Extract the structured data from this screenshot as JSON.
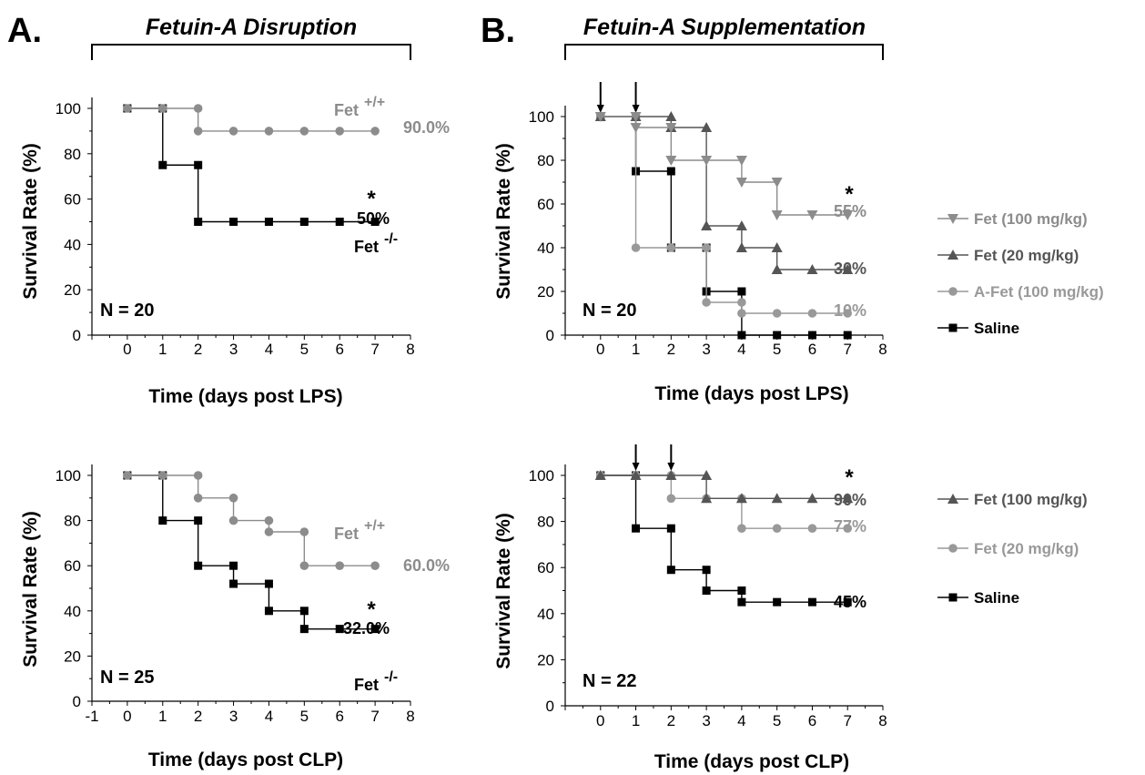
{
  "panels": [
    {
      "letter": "A.",
      "title": "Fetuin-A Disruption"
    },
    {
      "letter": "B.",
      "title": "Fetuin-A Supplementation"
    }
  ],
  "chart_data": [
    {
      "type": "line",
      "subtype": "kaplan-meier survival",
      "panel": "A",
      "xlabel": "Time (days post LPS)",
      "ylabel": "Survival Rate (%)",
      "xlim": [
        -1,
        8
      ],
      "ylim": [
        0,
        100
      ],
      "xticks": [
        "0",
        "1",
        "2",
        "3",
        "4",
        "5",
        "6",
        "7",
        "8"
      ],
      "yticks": [
        "0",
        "20",
        "40",
        "60",
        "80",
        "100"
      ],
      "n_label": "N = 20",
      "series": [
        {
          "name": "Fet +/+",
          "group": "Fet",
          "sup": "+/+",
          "color": "#8c8c8c",
          "marker": "circle",
          "x": [
            0,
            1,
            2,
            3,
            4,
            5,
            6,
            7
          ],
          "y": [
            100,
            100,
            90,
            90,
            90,
            90,
            90,
            90
          ],
          "end_label": "90.0%"
        },
        {
          "name": "Fet -/-",
          "group": "Fet",
          "sup": "-/-",
          "color": "#000000",
          "marker": "square",
          "x": [
            0,
            1,
            2,
            3,
            4,
            5,
            6,
            7
          ],
          "y": [
            100,
            75,
            50,
            50,
            50,
            50,
            50,
            50
          ],
          "end_label": "50%",
          "sig": "*"
        }
      ]
    },
    {
      "type": "line",
      "subtype": "kaplan-meier survival",
      "panel": "B",
      "xlabel": "Time (days post LPS)",
      "ylabel": "Survival Rate (%)",
      "xlim": [
        -1,
        8
      ],
      "ylim": [
        0,
        100
      ],
      "xticks": [
        "0",
        "1",
        "2",
        "3",
        "4",
        "5",
        "6",
        "7",
        "8"
      ],
      "yticks": [
        "0",
        "20",
        "40",
        "60",
        "80",
        "100"
      ],
      "n_label": "N = 20",
      "arrows_at": [
        0,
        1
      ],
      "series": [
        {
          "name": "Fet (100 mg/kg)",
          "color": "#8c8c8c",
          "marker": "triangle-down",
          "x": [
            0,
            1,
            2,
            3,
            4,
            5,
            6,
            7
          ],
          "y": [
            100,
            95,
            80,
            80,
            70,
            55,
            55,
            55
          ],
          "end_label": "55%",
          "sig": "*"
        },
        {
          "name": "Fet (20 mg/kg)",
          "color": "#555555",
          "marker": "triangle-up",
          "x": [
            0,
            1,
            2,
            3,
            4,
            5,
            6,
            7
          ],
          "y": [
            100,
            100,
            95,
            50,
            40,
            30,
            30,
            30
          ],
          "end_label": "30%"
        },
        {
          "name": "A-Fet (100 mg/kg)",
          "color": "#999999",
          "marker": "circle",
          "x": [
            0,
            1,
            2,
            3,
            4,
            5,
            6,
            7
          ],
          "y": [
            100,
            40,
            40,
            15,
            10,
            10,
            10,
            10
          ],
          "end_label": "10%"
        },
        {
          "name": "Saline",
          "color": "#000000",
          "marker": "square",
          "x": [
            0,
            1,
            2,
            3,
            4,
            5,
            6,
            7
          ],
          "y": [
            100,
            75,
            40,
            20,
            0,
            0,
            0,
            0
          ]
        }
      ]
    },
    {
      "type": "line",
      "subtype": "kaplan-meier survival",
      "panel": "A",
      "xlabel": "Time (days post CLP)",
      "ylabel": "Survival Rate (%)",
      "xlim": [
        -1,
        8
      ],
      "ylim": [
        0,
        100
      ],
      "xticks": [
        "-1",
        "0",
        "1",
        "2",
        "3",
        "4",
        "5",
        "6",
        "7",
        "8"
      ],
      "yticks": [
        "0",
        "20",
        "40",
        "60",
        "80",
        "100"
      ],
      "n_label": "N = 25",
      "series": [
        {
          "name": "Fet +/+",
          "group": "Fet",
          "sup": "+/+",
          "color": "#8c8c8c",
          "marker": "circle",
          "x": [
            0,
            1,
            2,
            3,
            4,
            5,
            6,
            7
          ],
          "y": [
            100,
            100,
            90,
            80,
            75,
            60,
            60,
            60
          ],
          "end_label": "60.0%"
        },
        {
          "name": "Fet -/-",
          "group": "Fet",
          "sup": "-/-",
          "color": "#000000",
          "marker": "square",
          "x": [
            0,
            1,
            2,
            3,
            4,
            5,
            6,
            7
          ],
          "y": [
            100,
            80,
            60,
            52,
            40,
            32,
            32,
            32
          ],
          "end_label": "32.0%",
          "sig": "*"
        }
      ]
    },
    {
      "type": "line",
      "subtype": "kaplan-meier survival",
      "panel": "B",
      "xlabel": "Time (days post CLP)",
      "ylabel": "Survival Rate (%)",
      "xlim": [
        -1,
        8
      ],
      "ylim": [
        0,
        100
      ],
      "xticks": [
        "0",
        "1",
        "2",
        "3",
        "4",
        "5",
        "6",
        "7",
        "8"
      ],
      "yticks": [
        "0",
        "20",
        "40",
        "60",
        "80",
        "100"
      ],
      "n_label": "N = 22",
      "arrows_at": [
        1,
        2
      ],
      "series": [
        {
          "name": "Fet (100 mg/kg)",
          "color": "#555555",
          "marker": "triangle-up",
          "x": [
            0,
            1,
            2,
            3,
            4,
            5,
            6,
            7
          ],
          "y": [
            100,
            100,
            100,
            90,
            90,
            90,
            90,
            90
          ],
          "end_label": "90%",
          "sig": "*"
        },
        {
          "name": "Fet (20 mg/kg)",
          "color": "#999999",
          "marker": "circle",
          "x": [
            0,
            1,
            2,
            3,
            4,
            5,
            6,
            7
          ],
          "y": [
            100,
            100,
            90,
            90,
            77,
            77,
            77,
            77
          ],
          "end_label": "77%"
        },
        {
          "name": "Saline",
          "color": "#000000",
          "marker": "square",
          "x": [
            0,
            1,
            2,
            3,
            4,
            5,
            6,
            7
          ],
          "y": [
            100,
            77,
            59,
            50,
            45,
            45,
            45,
            45
          ],
          "end_label": "45%"
        }
      ]
    }
  ]
}
